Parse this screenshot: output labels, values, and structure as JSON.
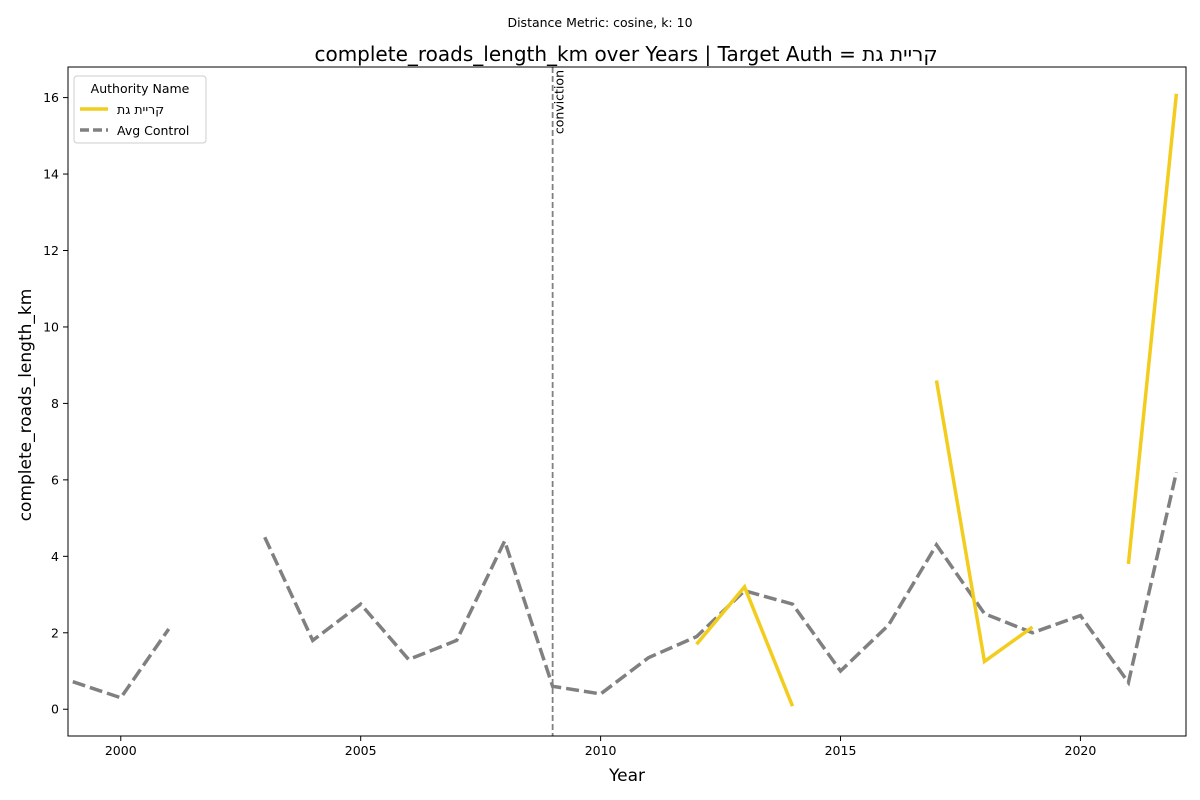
{
  "suptitle": "Distance Metric: cosine, k: 10",
  "chart_data": {
    "type": "line",
    "title": "complete_roads_length_km over Years | Target Auth = קריית גת",
    "xlabel": "Year",
    "ylabel": "complete_roads_length_km",
    "xlim": [
      1998.9,
      2022.2
    ],
    "ylim": [
      -0.7,
      16.8
    ],
    "xticks": [
      2000,
      2005,
      2010,
      2015,
      2020
    ],
    "yticks": [
      0,
      2,
      4,
      6,
      8,
      10,
      12,
      14,
      16
    ],
    "grid": false,
    "legend": {
      "title": "Authority Name",
      "placement": "top-left"
    },
    "vline": {
      "x": 2009,
      "label": "conviction"
    },
    "series": [
      {
        "name": "קריית גת",
        "color": "#f2cd1e",
        "style": "solid",
        "points": [
          [
            2012,
            1.7
          ],
          [
            2013,
            3.2
          ],
          [
            2014,
            0.08
          ],
          [
            2015,
            null
          ],
          [
            2016,
            null
          ],
          [
            2017,
            8.6
          ],
          [
            2018,
            1.25
          ],
          [
            2019,
            2.15
          ],
          [
            2020,
            null
          ],
          [
            2021,
            3.8
          ],
          [
            2022,
            16.1
          ]
        ]
      },
      {
        "name": "Avg Control",
        "color": "#808080",
        "style": "dashed",
        "points": [
          [
            1999,
            0.72
          ],
          [
            2000,
            0.3
          ],
          [
            2001,
            2.1
          ],
          [
            2002,
            null
          ],
          [
            2003,
            4.5
          ],
          [
            2004,
            1.8
          ],
          [
            2005,
            2.75
          ],
          [
            2006,
            1.3
          ],
          [
            2007,
            1.8
          ],
          [
            2008,
            4.4
          ],
          [
            2009,
            0.6
          ],
          [
            2010,
            0.4
          ],
          [
            2011,
            1.35
          ],
          [
            2012,
            1.9
          ],
          [
            2013,
            3.1
          ],
          [
            2014,
            2.75
          ],
          [
            2015,
            1.0
          ],
          [
            2016,
            2.2
          ],
          [
            2017,
            4.3
          ],
          [
            2018,
            2.5
          ],
          [
            2019,
            2.0
          ],
          [
            2020,
            2.45
          ],
          [
            2021,
            0.7
          ],
          [
            2022,
            6.2
          ]
        ]
      }
    ]
  }
}
